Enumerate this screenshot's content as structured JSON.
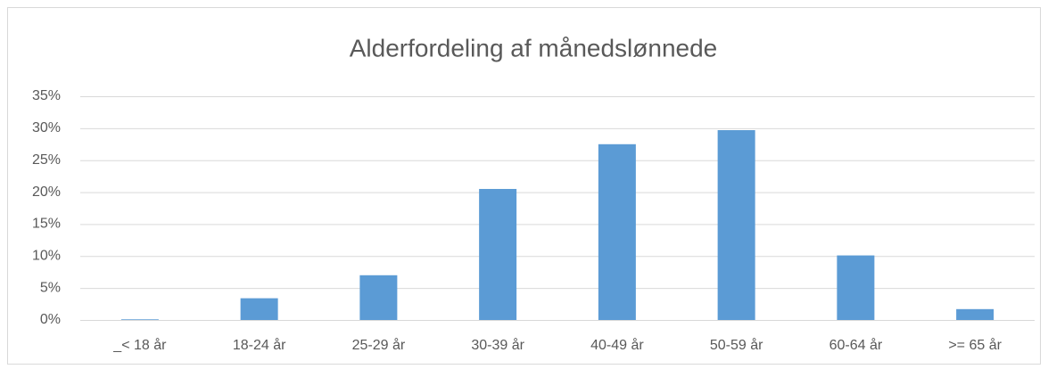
{
  "chart_data": {
    "type": "bar",
    "title": "Alderfordeling af månedslønnede",
    "categories": [
      "_< 18 år",
      "18-24 år",
      "25-29 år",
      "30-39 år",
      "40-49 år",
      "50-59 år",
      "60-64 år",
      ">= 65 år"
    ],
    "values": [
      0.1,
      3.4,
      7.0,
      20.5,
      27.5,
      29.7,
      10.1,
      1.7
    ],
    "color": "#5b9bd5",
    "ylim": [
      0,
      35
    ],
    "yticks": [
      {
        "value": 0,
        "label": "0%"
      },
      {
        "value": 5,
        "label": "5%"
      },
      {
        "value": 10,
        "label": "10%"
      },
      {
        "value": 15,
        "label": "15%"
      },
      {
        "value": 20,
        "label": "20%"
      },
      {
        "value": 25,
        "label": "25%"
      },
      {
        "value": 30,
        "label": "30%"
      },
      {
        "value": 35,
        "label": "35%"
      }
    ],
    "grid": true
  }
}
